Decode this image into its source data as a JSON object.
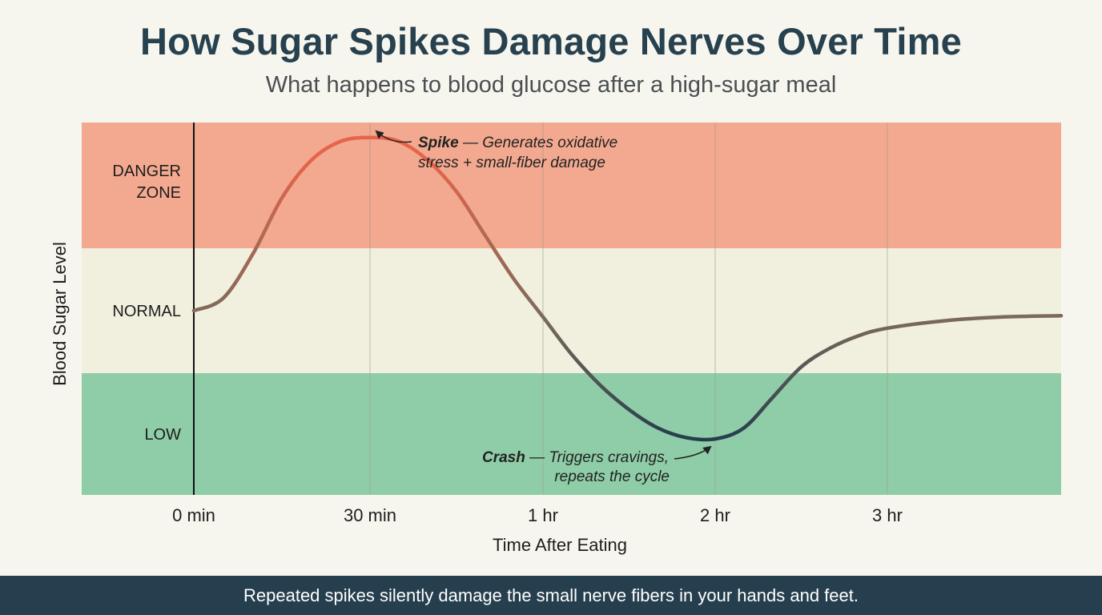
{
  "colors": {
    "danger": "#f2a990",
    "normal": "#f1efdd",
    "low": "#8ecda7",
    "curve_start": "#7d6a5c",
    "curve_peak": "#e6654a",
    "curve_low": "#253e4c",
    "footer_bg": "#263f4e",
    "title": "#27414f"
  },
  "chart_data": {
    "type": "line",
    "title": "How Sugar Spikes Damage Nerves Over Time",
    "subtitle": "What happens to blood glucose after a high-sugar meal",
    "xlabel": "Time After Eating",
    "ylabel": "Blood Sugar Level",
    "x_ticks": [
      {
        "label": "0 min",
        "value": 0
      },
      {
        "label": "30 min",
        "value": 30
      },
      {
        "label": "1 hr",
        "value": 60
      },
      {
        "label": "2 hr",
        "value": 90
      },
      {
        "label": "3 hr",
        "value": 120
      }
    ],
    "xlim": [
      0,
      150
    ],
    "ylim": [
      0,
      3
    ],
    "zones": [
      {
        "label_lines": [
          "DANGER",
          "ZONE"
        ],
        "from": 2,
        "to": 3,
        "color_key": "danger"
      },
      {
        "label_lines": [
          "NORMAL"
        ],
        "from": 1,
        "to": 2,
        "color_key": "normal"
      },
      {
        "label_lines": [
          "LOW"
        ],
        "from": 0,
        "to": 1,
        "color_key": "low"
      }
    ],
    "series": [
      {
        "x": [
          0,
          5,
          10,
          15,
          20,
          25,
          30,
          35,
          40,
          45,
          50,
          55,
          60,
          65,
          70,
          75,
          80,
          85,
          90,
          95,
          100,
          105,
          110,
          115,
          120,
          130,
          140,
          150
        ],
        "y": [
          1.5,
          1.6,
          1.95,
          2.4,
          2.7,
          2.85,
          2.88,
          2.85,
          2.7,
          2.45,
          2.1,
          1.75,
          1.45,
          1.15,
          0.9,
          0.7,
          0.55,
          0.47,
          0.46,
          0.55,
          0.8,
          1.05,
          1.2,
          1.3,
          1.36,
          1.42,
          1.45,
          1.46
        ]
      }
    ],
    "annotations": {
      "spike": {
        "bold": "Spike",
        "rest": " — Generates oxidative",
        "line2": "stress + small-fiber damage",
        "x": 30,
        "y": 2.88
      },
      "crash": {
        "bold": "Crash",
        "rest": " — Triggers cravings,",
        "line2": "repeats the cycle",
        "x": 90,
        "y": 0.46
      }
    }
  },
  "footer": {
    "text": "Repeated spikes silently damage the small nerve fibers in your hands and feet."
  }
}
